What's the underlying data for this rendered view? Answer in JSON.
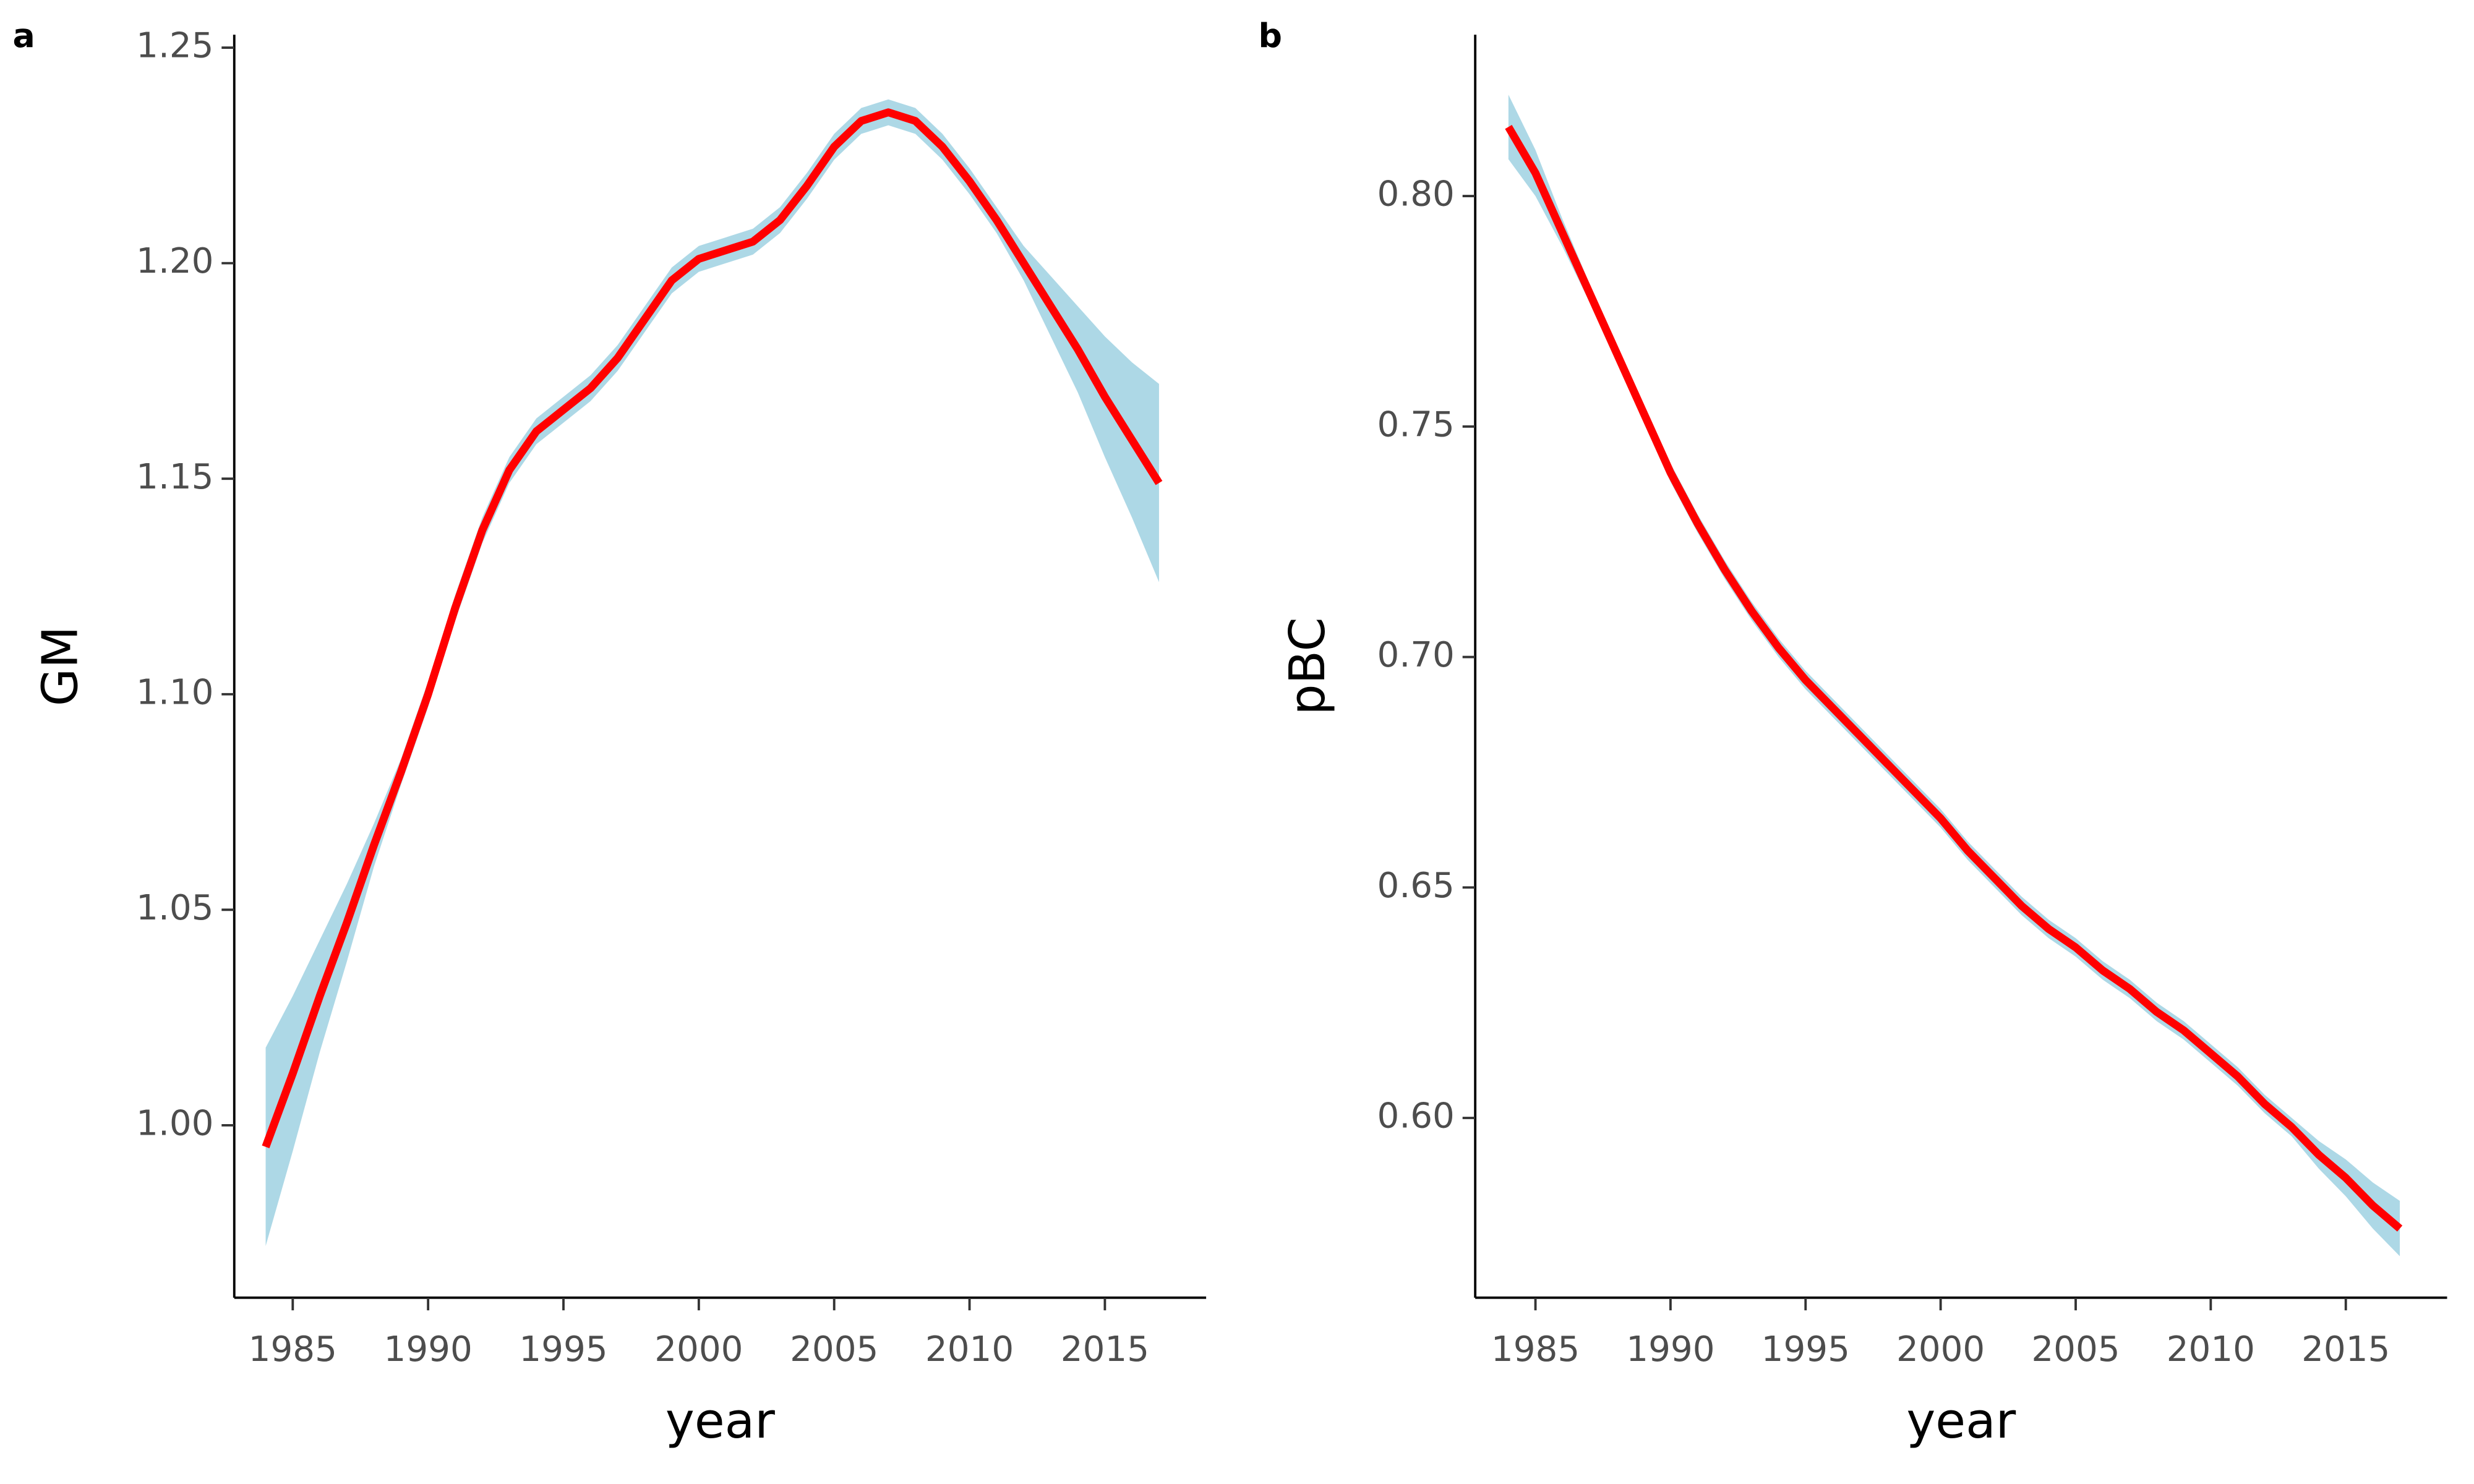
{
  "chart_data": [
    {
      "type": "line",
      "panel_label": "a",
      "xlabel": "year",
      "ylabel": "GM",
      "x": [
        1984,
        1985,
        1986,
        1987,
        1988,
        1989,
        1990,
        1991,
        1992,
        1993,
        1994,
        1995,
        1996,
        1997,
        1998,
        1999,
        2000,
        2001,
        2002,
        2003,
        2004,
        2005,
        2006,
        2007,
        2008,
        2009,
        2010,
        2011,
        2012,
        2013,
        2014,
        2015,
        2016,
        2017
      ],
      "series": [
        {
          "color": "#ff0000",
          "band_color": "#add8e6",
          "values": [
            0.995,
            1.012,
            1.03,
            1.047,
            1.065,
            1.082,
            1.1,
            1.12,
            1.138,
            1.152,
            1.161,
            1.166,
            1.171,
            1.178,
            1.187,
            1.196,
            1.201,
            1.203,
            1.205,
            1.21,
            1.218,
            1.227,
            1.233,
            1.235,
            1.233,
            1.227,
            1.219,
            1.21,
            1.2,
            1.19,
            1.18,
            1.169,
            1.159,
            1.149
          ],
          "upper": [
            1.018,
            1.03,
            1.043,
            1.056,
            1.07,
            1.085,
            1.103,
            1.123,
            1.141,
            1.155,
            1.164,
            1.169,
            1.174,
            1.181,
            1.19,
            1.199,
            1.204,
            1.206,
            1.208,
            1.213,
            1.221,
            1.23,
            1.236,
            1.238,
            1.236,
            1.23,
            1.222,
            1.213,
            1.204,
            1.197,
            1.19,
            1.183,
            1.177,
            1.172
          ],
          "lower": [
            0.972,
            0.994,
            1.017,
            1.038,
            1.06,
            1.079,
            1.097,
            1.117,
            1.135,
            1.149,
            1.158,
            1.163,
            1.168,
            1.175,
            1.184,
            1.193,
            1.198,
            1.2,
            1.202,
            1.207,
            1.215,
            1.224,
            1.23,
            1.232,
            1.23,
            1.224,
            1.216,
            1.207,
            1.196,
            1.183,
            1.17,
            1.155,
            1.141,
            1.126
          ]
        }
      ],
      "xlim": [
        1982.84,
        2018.74
      ],
      "xticks": [
        1985,
        1990,
        1995,
        2000,
        2005,
        2010,
        2015
      ],
      "ylim": [
        0.96,
        1.253
      ],
      "yticks": [
        {
          "value": 1,
          "label": "1.00"
        },
        {
          "value": 1.05,
          "label": "1.05"
        },
        {
          "value": 1.1,
          "label": "1.10"
        },
        {
          "value": 1.15,
          "label": "1.15"
        },
        {
          "value": 1.2,
          "label": "1.20"
        },
        {
          "value": 1.25,
          "label": "1.25"
        }
      ]
    },
    {
      "type": "line",
      "panel_label": "b",
      "xlabel": "year",
      "ylabel": "pBC",
      "x": [
        1984,
        1985,
        1986,
        1987,
        1988,
        1989,
        1990,
        1991,
        1992,
        1993,
        1994,
        1995,
        1996,
        1997,
        1998,
        1999,
        2000,
        2001,
        2002,
        2003,
        2004,
        2005,
        2006,
        2007,
        2008,
        2009,
        2010,
        2011,
        2012,
        2013,
        2014,
        2015,
        2016,
        2017
      ],
      "series": [
        {
          "color": "#ff0000",
          "band_color": "#add8e6",
          "values": [
            0.815,
            0.805,
            0.792,
            0.779,
            0.766,
            0.753,
            0.74,
            0.729,
            0.719,
            0.71,
            0.702,
            0.695,
            0.689,
            0.683,
            0.677,
            0.671,
            0.665,
            0.658,
            0.652,
            0.646,
            0.641,
            0.637,
            0.632,
            0.628,
            0.623,
            0.619,
            0.614,
            0.609,
            0.603,
            0.598,
            0.592,
            0.587,
            0.581,
            0.576
          ],
          "upper": [
            0.822,
            0.81,
            0.795,
            0.781,
            0.768,
            0.755,
            0.742,
            0.731,
            0.721,
            0.712,
            0.704,
            0.697,
            0.691,
            0.685,
            0.679,
            0.673,
            0.667,
            0.66,
            0.654,
            0.648,
            0.643,
            0.639,
            0.634,
            0.63,
            0.625,
            0.621,
            0.616,
            0.611,
            0.605,
            0.6,
            0.595,
            0.591,
            0.586,
            0.582
          ],
          "lower": [
            0.808,
            0.8,
            0.789,
            0.777,
            0.764,
            0.751,
            0.738,
            0.727,
            0.717,
            0.708,
            0.7,
            0.693,
            0.687,
            0.681,
            0.675,
            0.669,
            0.663,
            0.656,
            0.65,
            0.644,
            0.639,
            0.635,
            0.63,
            0.626,
            0.621,
            0.617,
            0.612,
            0.607,
            0.601,
            0.596,
            0.589,
            0.583,
            0.576,
            0.57
          ]
        }
      ],
      "xlim": [
        1982.77,
        2018.75
      ],
      "xticks": [
        1985,
        1990,
        1995,
        2000,
        2005,
        2010,
        2015
      ],
      "ylim": [
        0.561,
        0.835
      ],
      "yticks": [
        {
          "value": 0.6,
          "label": "0.60"
        },
        {
          "value": 0.65,
          "label": "0.65"
        },
        {
          "value": 0.7,
          "label": "0.70"
        },
        {
          "value": 0.75,
          "label": "0.75"
        },
        {
          "value": 0.8,
          "label": "0.80"
        }
      ]
    }
  ]
}
